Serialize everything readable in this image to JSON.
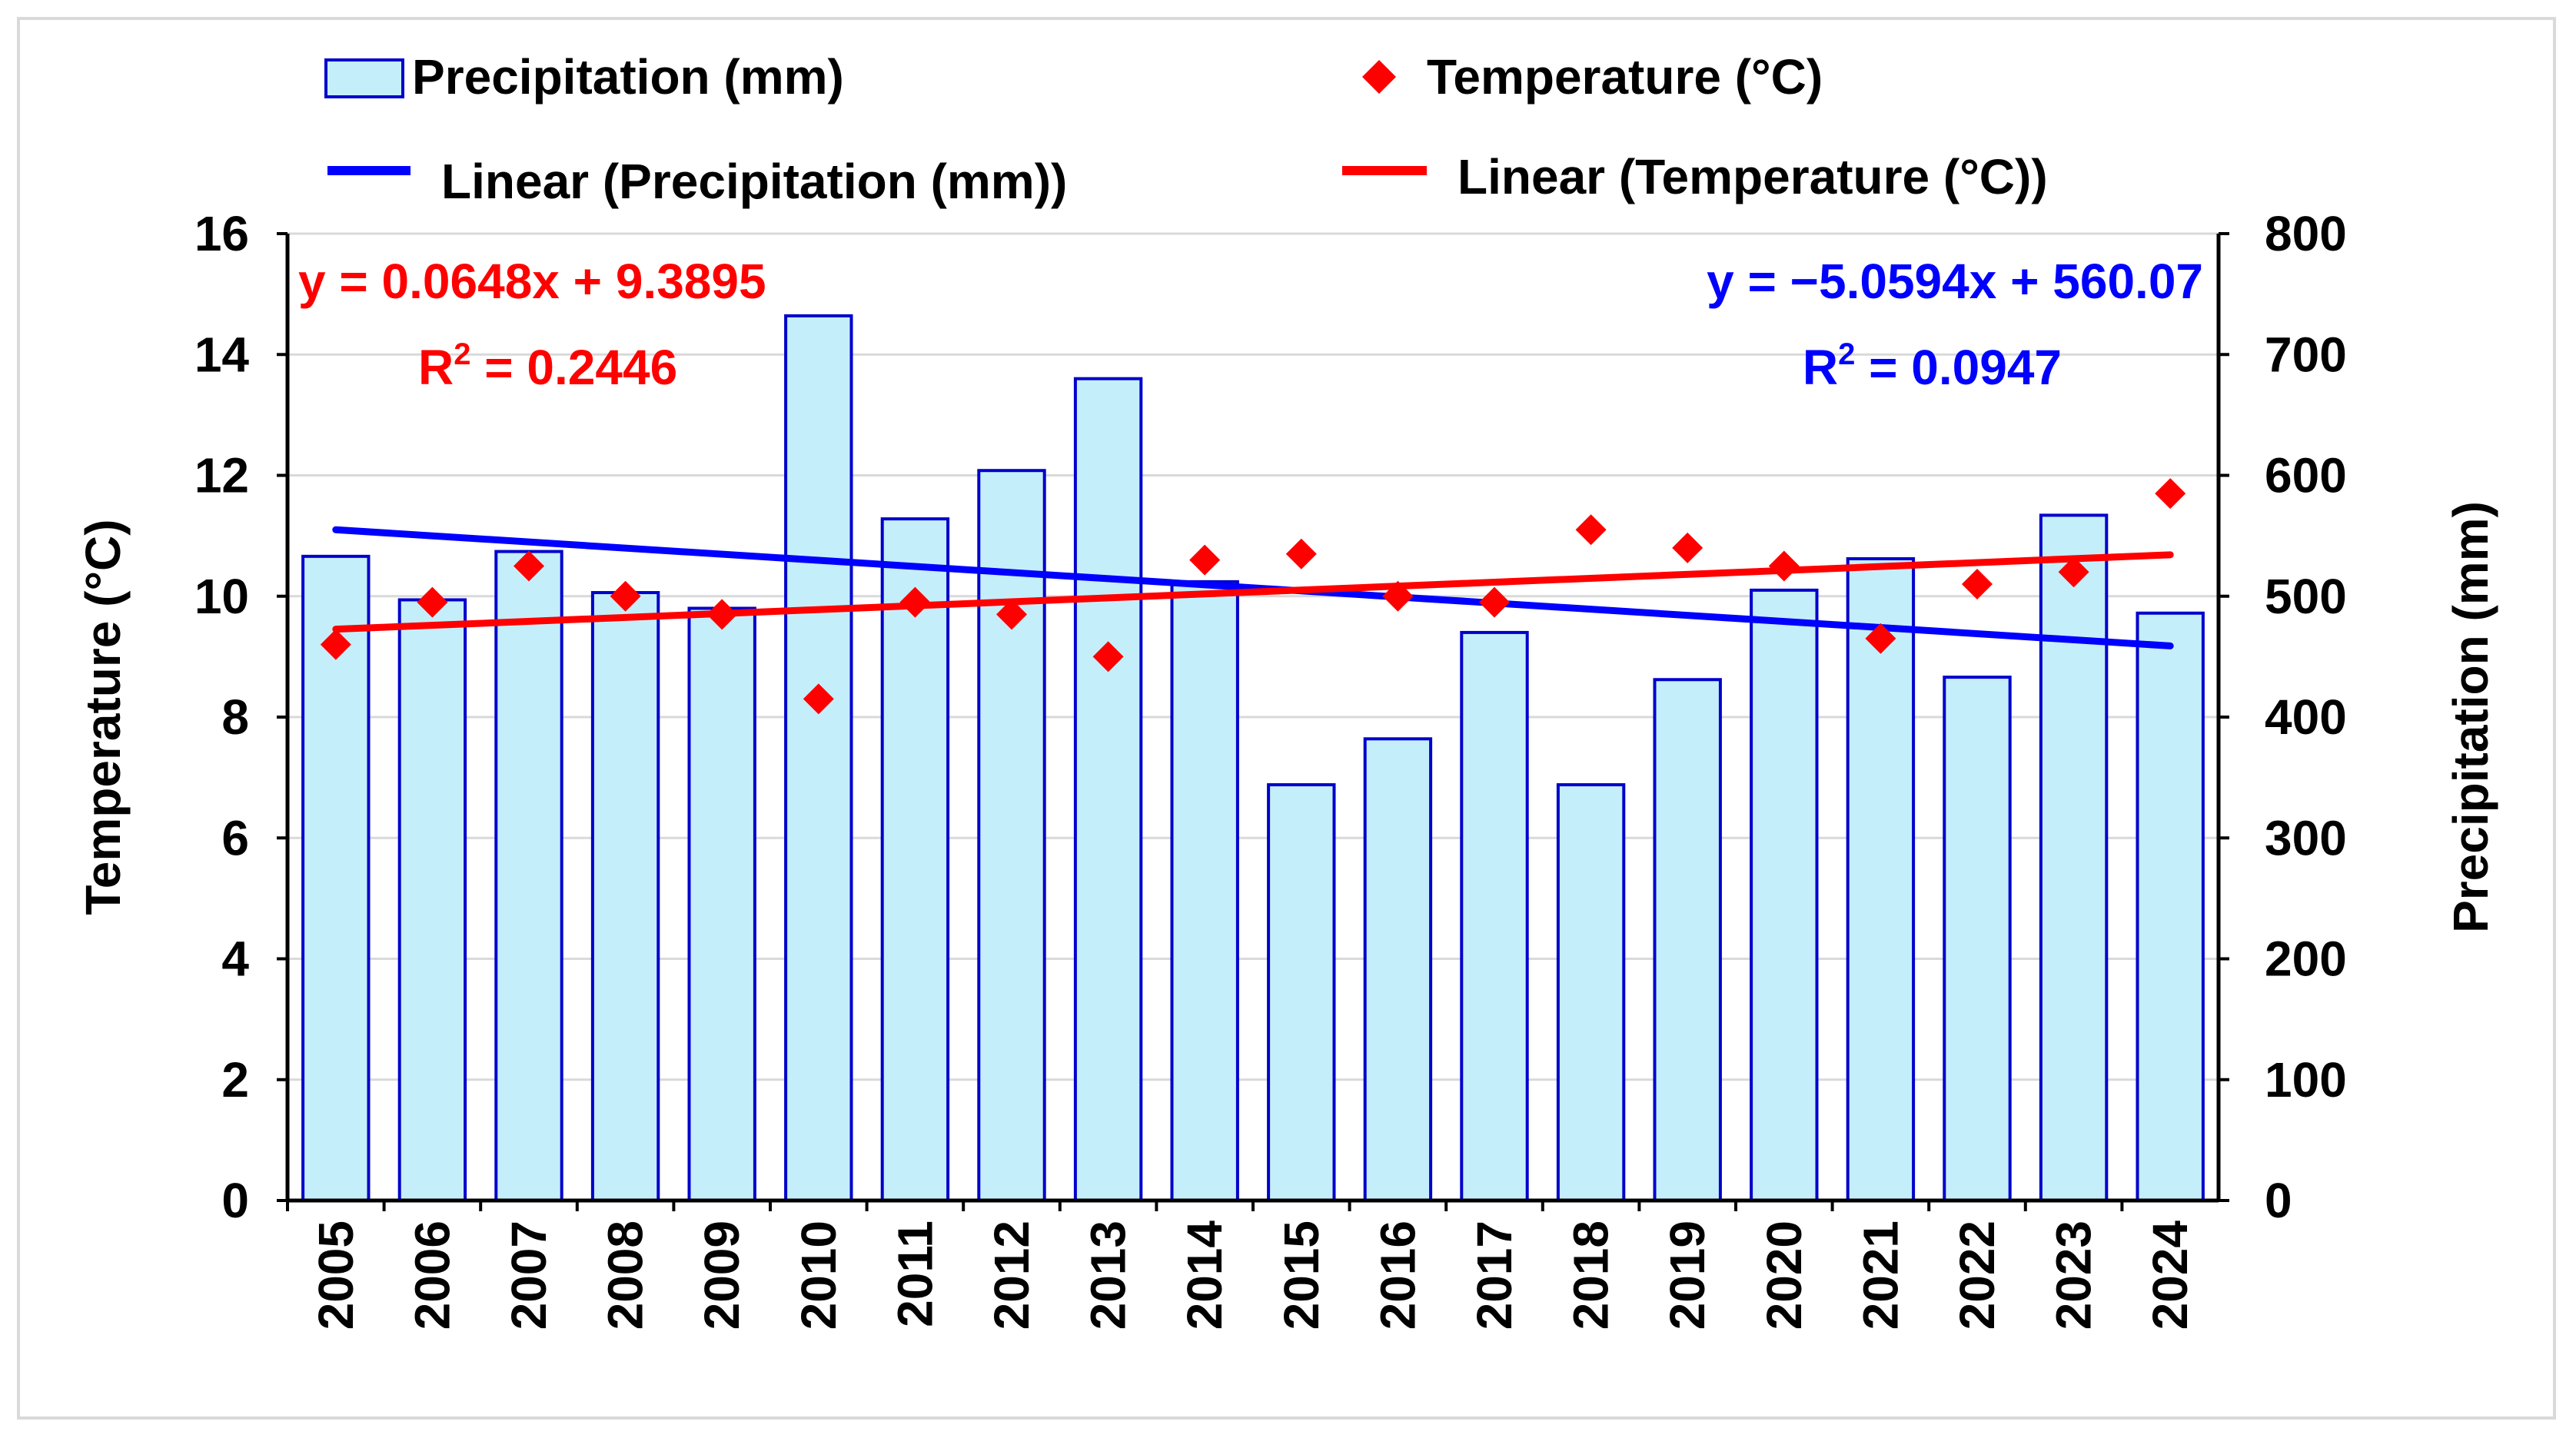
{
  "chart_data": {
    "type": "bar+scatter",
    "categories": [
      "2005",
      "2006",
      "2007",
      "2008",
      "2009",
      "2010",
      "2011",
      "2012",
      "2013",
      "2014",
      "2015",
      "2016",
      "2017",
      "2018",
      "2019",
      "2020",
      "2021",
      "2022",
      "2023",
      "2024"
    ],
    "series": [
      {
        "name": "Precipitation (mm)",
        "kind": "bar",
        "axis": "right",
        "values": [
          533,
          497,
          537,
          503,
          490,
          732,
          564,
          604,
          680,
          512,
          344,
          382,
          470,
          344,
          431,
          505,
          531,
          433,
          567,
          486
        ]
      },
      {
        "name": "Temperature (°C)",
        "kind": "scatter",
        "axis": "left",
        "values": [
          9.2,
          9.9,
          10.5,
          10.0,
          9.7,
          8.3,
          9.9,
          9.7,
          9.0,
          10.6,
          10.7,
          10.0,
          9.9,
          11.1,
          10.8,
          10.5,
          9.3,
          10.2,
          10.4,
          11.7
        ]
      }
    ],
    "trendlines": [
      {
        "name": "Linear (Precipitation (mm))",
        "axis": "right",
        "slope": -5.0594,
        "intercept": 560.07,
        "equation": "y = −5.0594x + 560.07",
        "r2_prefix": "R",
        "r2_sup": "2",
        "r2_value": " = 0.0947",
        "color": "#0000ff"
      },
      {
        "name": "Linear (Temperature (°C))",
        "axis": "left",
        "slope": 0.0648,
        "intercept": 9.3895,
        "equation": "y = 0.0648x + 9.3895",
        "r2_prefix": "R",
        "r2_sup": "2",
        "r2_value": " = 0.2446",
        "color": "#ff0000"
      }
    ],
    "y_left": {
      "label": "Temperature (°C)",
      "min": 0,
      "max": 16,
      "ticks": [
        "0",
        "2",
        "4",
        "6",
        "8",
        "10",
        "12",
        "14",
        "16"
      ]
    },
    "y_right": {
      "label": "Precipitation (mm)",
      "min": 0,
      "max": 800,
      "ticks": [
        "0",
        "100",
        "200",
        "300",
        "400",
        "500",
        "600",
        "700",
        "800"
      ]
    },
    "legend": {
      "position": "top",
      "items": [
        {
          "label": "Precipitation (mm)",
          "symbol": "bar"
        },
        {
          "label": "Temperature (°C)",
          "symbol": "diamond"
        },
        {
          "label": "Linear (Precipitation (mm))",
          "symbol": "line-blue"
        },
        {
          "label": "Linear (Temperature (°C))",
          "symbol": "line-red"
        }
      ]
    },
    "grid": true,
    "colors": {
      "bar_fill": "#c5eefb",
      "bar_stroke": "#0000cc",
      "marker": "#ff0000",
      "precip_trend": "#0000ff",
      "temp_trend": "#ff0000",
      "grid": "#d9d9d9",
      "axis": "#000000"
    }
  }
}
